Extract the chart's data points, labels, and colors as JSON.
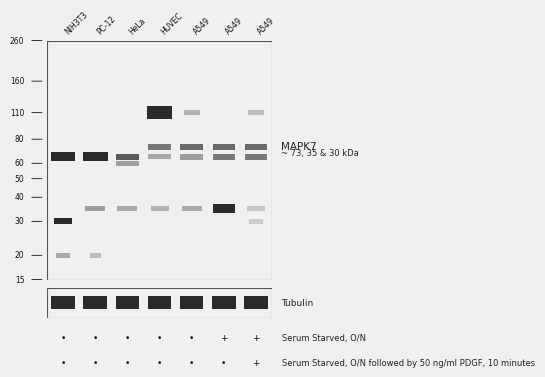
{
  "background_color": "#f0f0f0",
  "blot_bg": "#d0d0d0",
  "tubulin_bg": "#c8c8c8",
  "lane_labels": [
    "NIH3T3",
    "PC-12",
    "HeLa",
    "HUVEC",
    "A549",
    "A549",
    "A549"
  ],
  "mw_markers": [
    260,
    160,
    110,
    80,
    60,
    50,
    40,
    30,
    20,
    15
  ],
  "mapk7_label": "MAPK7",
  "mapk7_sublabel": "~ 73, 35 & 30 kDa",
  "tubulin_label": "Tubulin",
  "serum_label1": "Serum Starved, O/N",
  "serum_label2": "Serum Starved, O/N followed by 50 ng/ml PDGF, 10 minutes",
  "row1_symbols": [
    "•",
    "•",
    "•",
    "•",
    "•",
    "+",
    "+"
  ],
  "row2_symbols": [
    "•",
    "•",
    "•",
    "•",
    "•",
    "•",
    "+"
  ],
  "fig_width": 6.5,
  "fig_height": 3.71
}
